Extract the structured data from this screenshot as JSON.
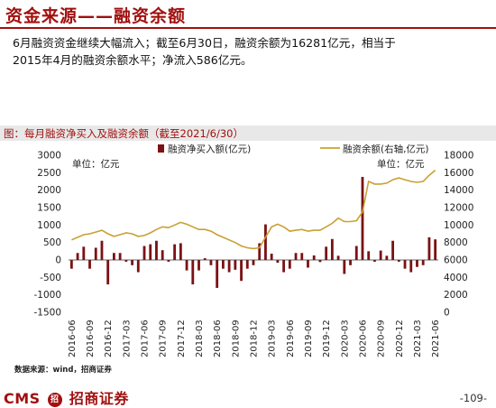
{
  "header": {
    "title": "资金来源——融资余额",
    "summary_line1": "6月融资资金继续大幅流入；截至6月30日，融资余额为16281亿元，相当于",
    "summary_line2": "2015年4月的融资余额水平；净流入586亿元。"
  },
  "chart_title": "图：每月融资净买入及融资余额（截至2021/6/30）",
  "source": "数据来源：wind，招商证券",
  "footer": {
    "logo_left": "CMS",
    "logo_badge": "招",
    "logo_right": "招商证券",
    "page": "-109-"
  },
  "colors": {
    "bar": "#7b1214",
    "line": "#c9a033",
    "accent": "#a1100f"
  },
  "chart_data": {
    "type": "bar+line",
    "legend": {
      "bar": "融资净买入额(亿元)",
      "line": "融资余额(右轴,亿元)"
    },
    "left_unit": "单位：亿元",
    "right_unit": "单位：亿元",
    "y_left": {
      "min": -1500,
      "max": 3000,
      "ticks": [
        -1500,
        -1000,
        -500,
        0,
        500,
        1000,
        1500,
        2000,
        2500,
        3000
      ]
    },
    "y_right": {
      "min": 0,
      "max": 18000,
      "ticks": [
        0,
        2000,
        4000,
        6000,
        8000,
        10000,
        12000,
        14000,
        16000,
        18000
      ]
    },
    "x_labels": [
      "2016-06",
      "2016-09",
      "2016-12",
      "2017-03",
      "2017-06",
      "2017-09",
      "2017-12",
      "2018-03",
      "2018-06",
      "2018-09",
      "2018-12",
      "2019-03",
      "2019-06",
      "2019-09",
      "2019-12",
      "2020-03",
      "2020-06",
      "2020-09",
      "2020-12",
      "2021-03",
      "2021-06"
    ],
    "months": [
      "2016-06",
      "2016-07",
      "2016-08",
      "2016-09",
      "2016-10",
      "2016-11",
      "2016-12",
      "2017-01",
      "2017-02",
      "2017-03",
      "2017-04",
      "2017-05",
      "2017-06",
      "2017-07",
      "2017-08",
      "2017-09",
      "2017-10",
      "2017-11",
      "2017-12",
      "2018-01",
      "2018-02",
      "2018-03",
      "2018-04",
      "2018-05",
      "2018-06",
      "2018-07",
      "2018-08",
      "2018-09",
      "2018-10",
      "2018-11",
      "2018-12",
      "2019-01",
      "2019-02",
      "2019-03",
      "2019-04",
      "2019-05",
      "2019-06",
      "2019-07",
      "2019-08",
      "2019-09",
      "2019-10",
      "2019-11",
      "2019-12",
      "2020-01",
      "2020-02",
      "2020-03",
      "2020-04",
      "2020-05",
      "2020-06",
      "2020-07",
      "2020-08",
      "2020-09",
      "2020-10",
      "2020-11",
      "2020-12",
      "2021-01",
      "2021-02",
      "2021-03",
      "2021-04",
      "2021-05",
      "2021-06"
    ],
    "net_buy": [
      -250,
      200,
      380,
      -250,
      350,
      550,
      -700,
      200,
      200,
      -50,
      -150,
      -350,
      400,
      450,
      550,
      280,
      -50,
      450,
      480,
      -300,
      -700,
      -300,
      50,
      -150,
      -800,
      -250,
      -350,
      -280,
      -600,
      -250,
      -150,
      480,
      1020,
      180,
      -80,
      -350,
      -250,
      200,
      200,
      -220,
      130,
      -60,
      380,
      600,
      120,
      -400,
      -150,
      400,
      2380,
      250,
      -50,
      270,
      120,
      550,
      -50,
      -250,
      -350,
      -200,
      -150,
      650,
      590
    ],
    "balance": [
      8300,
      8600,
      8900,
      9000,
      9200,
      9400,
      9000,
      8700,
      8900,
      9100,
      9000,
      8700,
      8800,
      9100,
      9500,
      9800,
      9700,
      10000,
      10300,
      10100,
      9800,
      9500,
      9500,
      9300,
      8900,
      8600,
      8300,
      8000,
      7600,
      7400,
      7300,
      7400,
      8600,
      9800,
      10100,
      9800,
      9300,
      9400,
      9500,
      9300,
      9400,
      9400,
      9800,
      10200,
      10800,
      10400,
      10400,
      10500,
      11500,
      15000,
      14700,
      14700,
      14800,
      15200,
      15400,
      15200,
      15000,
      14900,
      15000,
      15700,
      16281
    ]
  }
}
